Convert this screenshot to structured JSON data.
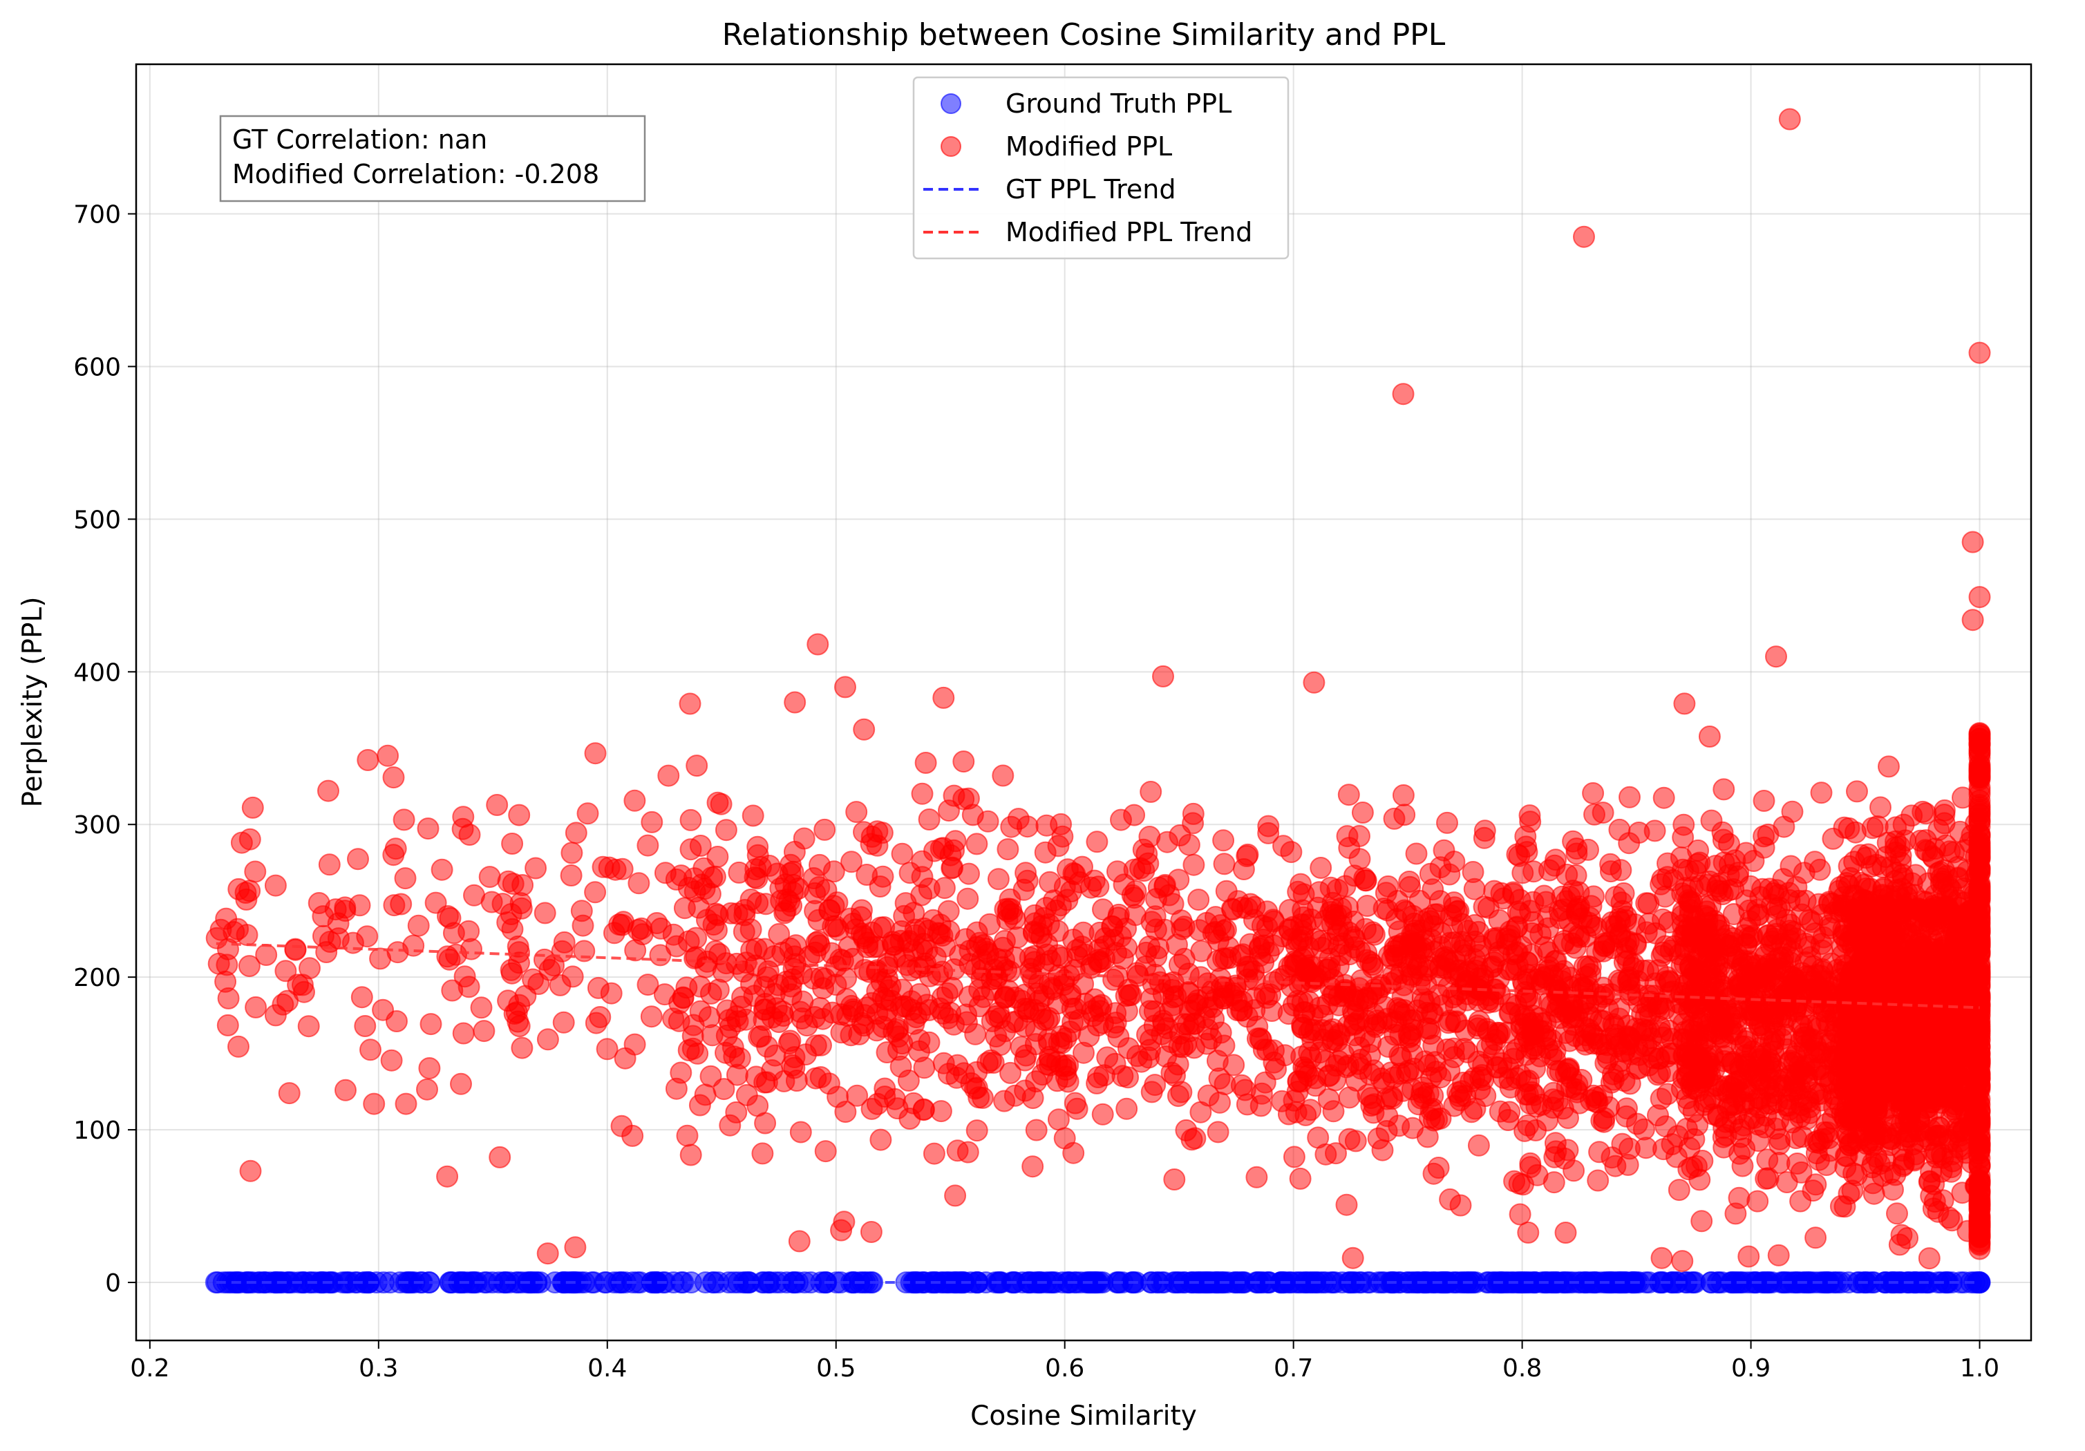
{
  "chart_data": {
    "type": "scatter",
    "title": "Relationship between Cosine Similarity and PPL",
    "xlabel": "Cosine Similarity",
    "ylabel": "Perplexity (PPL)",
    "xlim": [
      0.194,
      1.0225
    ],
    "ylim": [
      -38,
      798
    ],
    "xticks": [
      "0.2",
      "0.3",
      "0.4",
      "0.5",
      "0.6",
      "0.7",
      "0.8",
      "0.9",
      "1.0"
    ],
    "xtick_values": [
      0.2,
      0.3,
      0.4,
      0.5,
      0.6,
      0.7,
      0.8,
      0.9,
      1.0
    ],
    "yticks": [
      "0",
      "100",
      "200",
      "300",
      "400",
      "500",
      "600",
      "700"
    ],
    "ytick_values": [
      0,
      100,
      200,
      300,
      400,
      500,
      600,
      700
    ],
    "grid": true,
    "legend_position": "top-center",
    "annotation": {
      "line1": "GT Correlation: nan",
      "line2": "Modified Correlation: -0.208",
      "position": "top-left"
    },
    "colors": {
      "gt": "#0000ff",
      "modified": "#ff0000",
      "gt_trend": "#3333ff",
      "modified_trend": "#ff3333"
    },
    "series": [
      {
        "name": "Ground Truth PPL",
        "kind": "scatter",
        "x_range": [
          0.229,
          1.0
        ],
        "y_constant": 0,
        "samples": 600
      },
      {
        "name": "Modified PPL",
        "kind": "scatter",
        "distribution": "dense cloud centered near PPL 150–250, density increasing toward cosine similarity 1.0",
        "outliers": [
          {
            "x": 0.917,
            "y": 762
          },
          {
            "x": 0.827,
            "y": 685
          },
          {
            "x": 1.0,
            "y": 609
          },
          {
            "x": 0.748,
            "y": 582
          },
          {
            "x": 0.997,
            "y": 485
          },
          {
            "x": 1.0,
            "y": 449
          },
          {
            "x": 0.997,
            "y": 434
          },
          {
            "x": 0.492,
            "y": 418
          },
          {
            "x": 0.911,
            "y": 410
          },
          {
            "x": 0.709,
            "y": 393
          },
          {
            "x": 0.504,
            "y": 390
          },
          {
            "x": 0.482,
            "y": 380
          },
          {
            "x": 0.643,
            "y": 397
          },
          {
            "x": 0.547,
            "y": 383
          },
          {
            "x": 0.245,
            "y": 311
          },
          {
            "x": 0.304,
            "y": 345
          },
          {
            "x": 0.278,
            "y": 322
          },
          {
            "x": 0.337,
            "y": 305
          },
          {
            "x": 0.255,
            "y": 260
          },
          {
            "x": 0.255,
            "y": 175
          },
          {
            "x": 0.261,
            "y": 124
          },
          {
            "x": 0.244,
            "y": 73
          },
          {
            "x": 0.353,
            "y": 82
          },
          {
            "x": 0.336,
            "y": 130
          },
          {
            "x": 0.312,
            "y": 117
          },
          {
            "x": 0.298,
            "y": 117
          },
          {
            "x": 0.374,
            "y": 19
          },
          {
            "x": 0.386,
            "y": 23
          },
          {
            "x": 0.484,
            "y": 27
          },
          {
            "x": 0.411,
            "y": 96
          },
          {
            "x": 0.231,
            "y": 231
          },
          {
            "x": 0.233,
            "y": 197
          },
          {
            "x": 0.573,
            "y": 332
          },
          {
            "x": 0.861,
            "y": 16
          },
          {
            "x": 0.87,
            "y": 14
          },
          {
            "x": 0.726,
            "y": 16
          },
          {
            "x": 0.899,
            "y": 17
          }
        ]
      },
      {
        "name": "GT PPL Trend",
        "kind": "line",
        "style": "dashed",
        "x": [
          0.229,
          1.0
        ],
        "y": [
          0,
          0
        ]
      },
      {
        "name": "Modified PPL Trend",
        "kind": "line",
        "style": "dashed",
        "x": [
          0.229,
          1.0
        ],
        "y": [
          222,
          180
        ]
      }
    ]
  }
}
